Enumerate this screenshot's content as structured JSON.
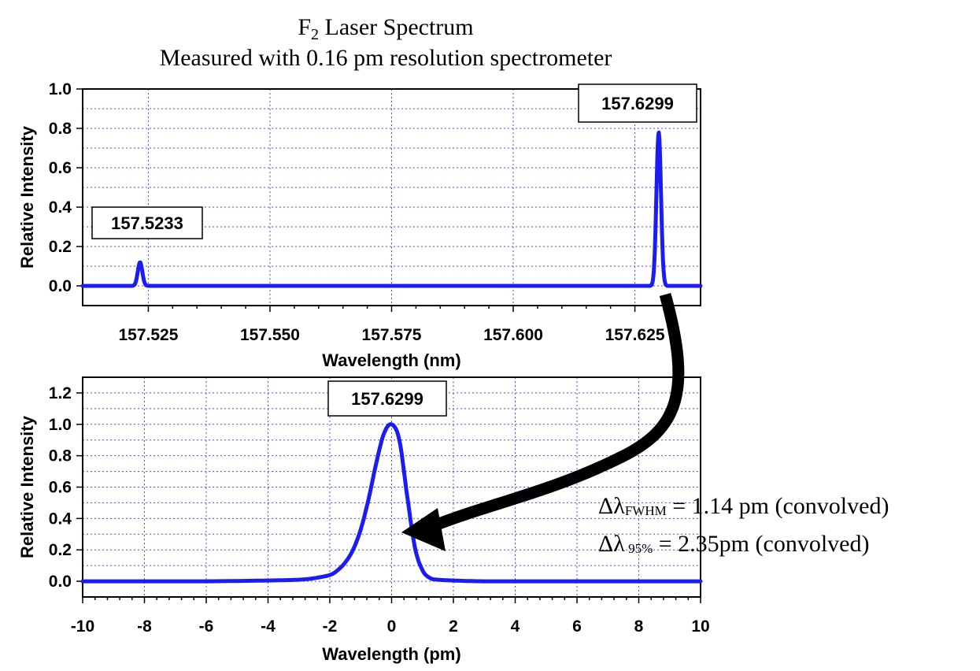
{
  "title": {
    "main_prefix": "F",
    "main_subscript": "2",
    "main_suffix": " Laser Spectrum",
    "subtitle": "Measured with 0.16 pm resolution spectrometer"
  },
  "notes": {
    "fwhm_symbol": "Δλ",
    "fwhm_subscript": "FWHM",
    "fwhm_text": " = 1.14 pm (convolved)",
    "p95_symbol": "Δλ",
    "p95_subscript": " 95%",
    "p95_text": " = 2.35pm (convolved)"
  },
  "colors": {
    "trace": "#1c1cf0",
    "grid": "#4a4af0",
    "arrow": "#000000"
  },
  "chart_data": [
    {
      "type": "line",
      "xlabel": "Wavelength (nm)",
      "ylabel": "Relative Intensity",
      "xlim": [
        157.5115,
        157.6385
      ],
      "ylim": [
        -0.1,
        1.0
      ],
      "xticks": [
        157.525,
        157.55,
        157.575,
        157.6,
        157.625
      ],
      "xtick_labels": [
        "157.525",
        "157.550",
        "157.575",
        "157.600",
        "157.625"
      ],
      "yticks": [
        0.0,
        0.2,
        0.4,
        0.6,
        0.8,
        1.0
      ],
      "ytick_labels": [
        "0.0",
        "0.2",
        "0.4",
        "0.6",
        "0.8",
        "1.0"
      ],
      "grid": true,
      "series": [
        {
          "peaks": [
            {
              "center": 157.5233,
              "height": 0.12,
              "fwhm": 0.0011
            },
            {
              "center": 157.6299,
              "height": 0.78,
              "fwhm": 0.0011
            }
          ],
          "baseline": 0.0
        }
      ],
      "annotations": [
        {
          "label": "157.5233",
          "x": 157.5233
        },
        {
          "label": "157.6299",
          "x": 157.6299
        }
      ]
    },
    {
      "type": "line",
      "xlabel": "Wavelength (pm)",
      "ylabel": "Relative Intensity",
      "xlim": [
        -10,
        10
      ],
      "ylim": [
        -0.1,
        1.3
      ],
      "xticks": [
        -10,
        -8,
        -6,
        -4,
        -2,
        0,
        2,
        4,
        6,
        8,
        10
      ],
      "xtick_labels": [
        "-10",
        "-8",
        "-6",
        "-4",
        "-2",
        "0",
        "2",
        "4",
        "6",
        "8",
        "10"
      ],
      "yticks": [
        0.0,
        0.2,
        0.4,
        0.6,
        0.8,
        1.0,
        1.2
      ],
      "ytick_labels": [
        "0.0",
        "0.2",
        "0.4",
        "0.6",
        "0.8",
        "1.0",
        "1.2"
      ],
      "grid": true,
      "series": [
        {
          "x": [
            -10,
            -6,
            -4,
            -3,
            -2.5,
            -2,
            -1.75,
            -1.5,
            -1.25,
            -1.0,
            -0.75,
            -0.5,
            -0.25,
            0,
            0.25,
            0.5,
            0.75,
            1.0,
            1.25,
            1.5,
            2,
            3,
            6,
            10
          ],
          "y": [
            0.0,
            0.0,
            0.005,
            0.01,
            0.02,
            0.04,
            0.07,
            0.12,
            0.2,
            0.33,
            0.52,
            0.75,
            0.94,
            1.0,
            0.9,
            0.55,
            0.22,
            0.07,
            0.02,
            0.01,
            0.005,
            0.0,
            0.0,
            0.0
          ]
        }
      ],
      "annotations": [
        {
          "label": "157.6299",
          "x": 0
        }
      ]
    }
  ]
}
